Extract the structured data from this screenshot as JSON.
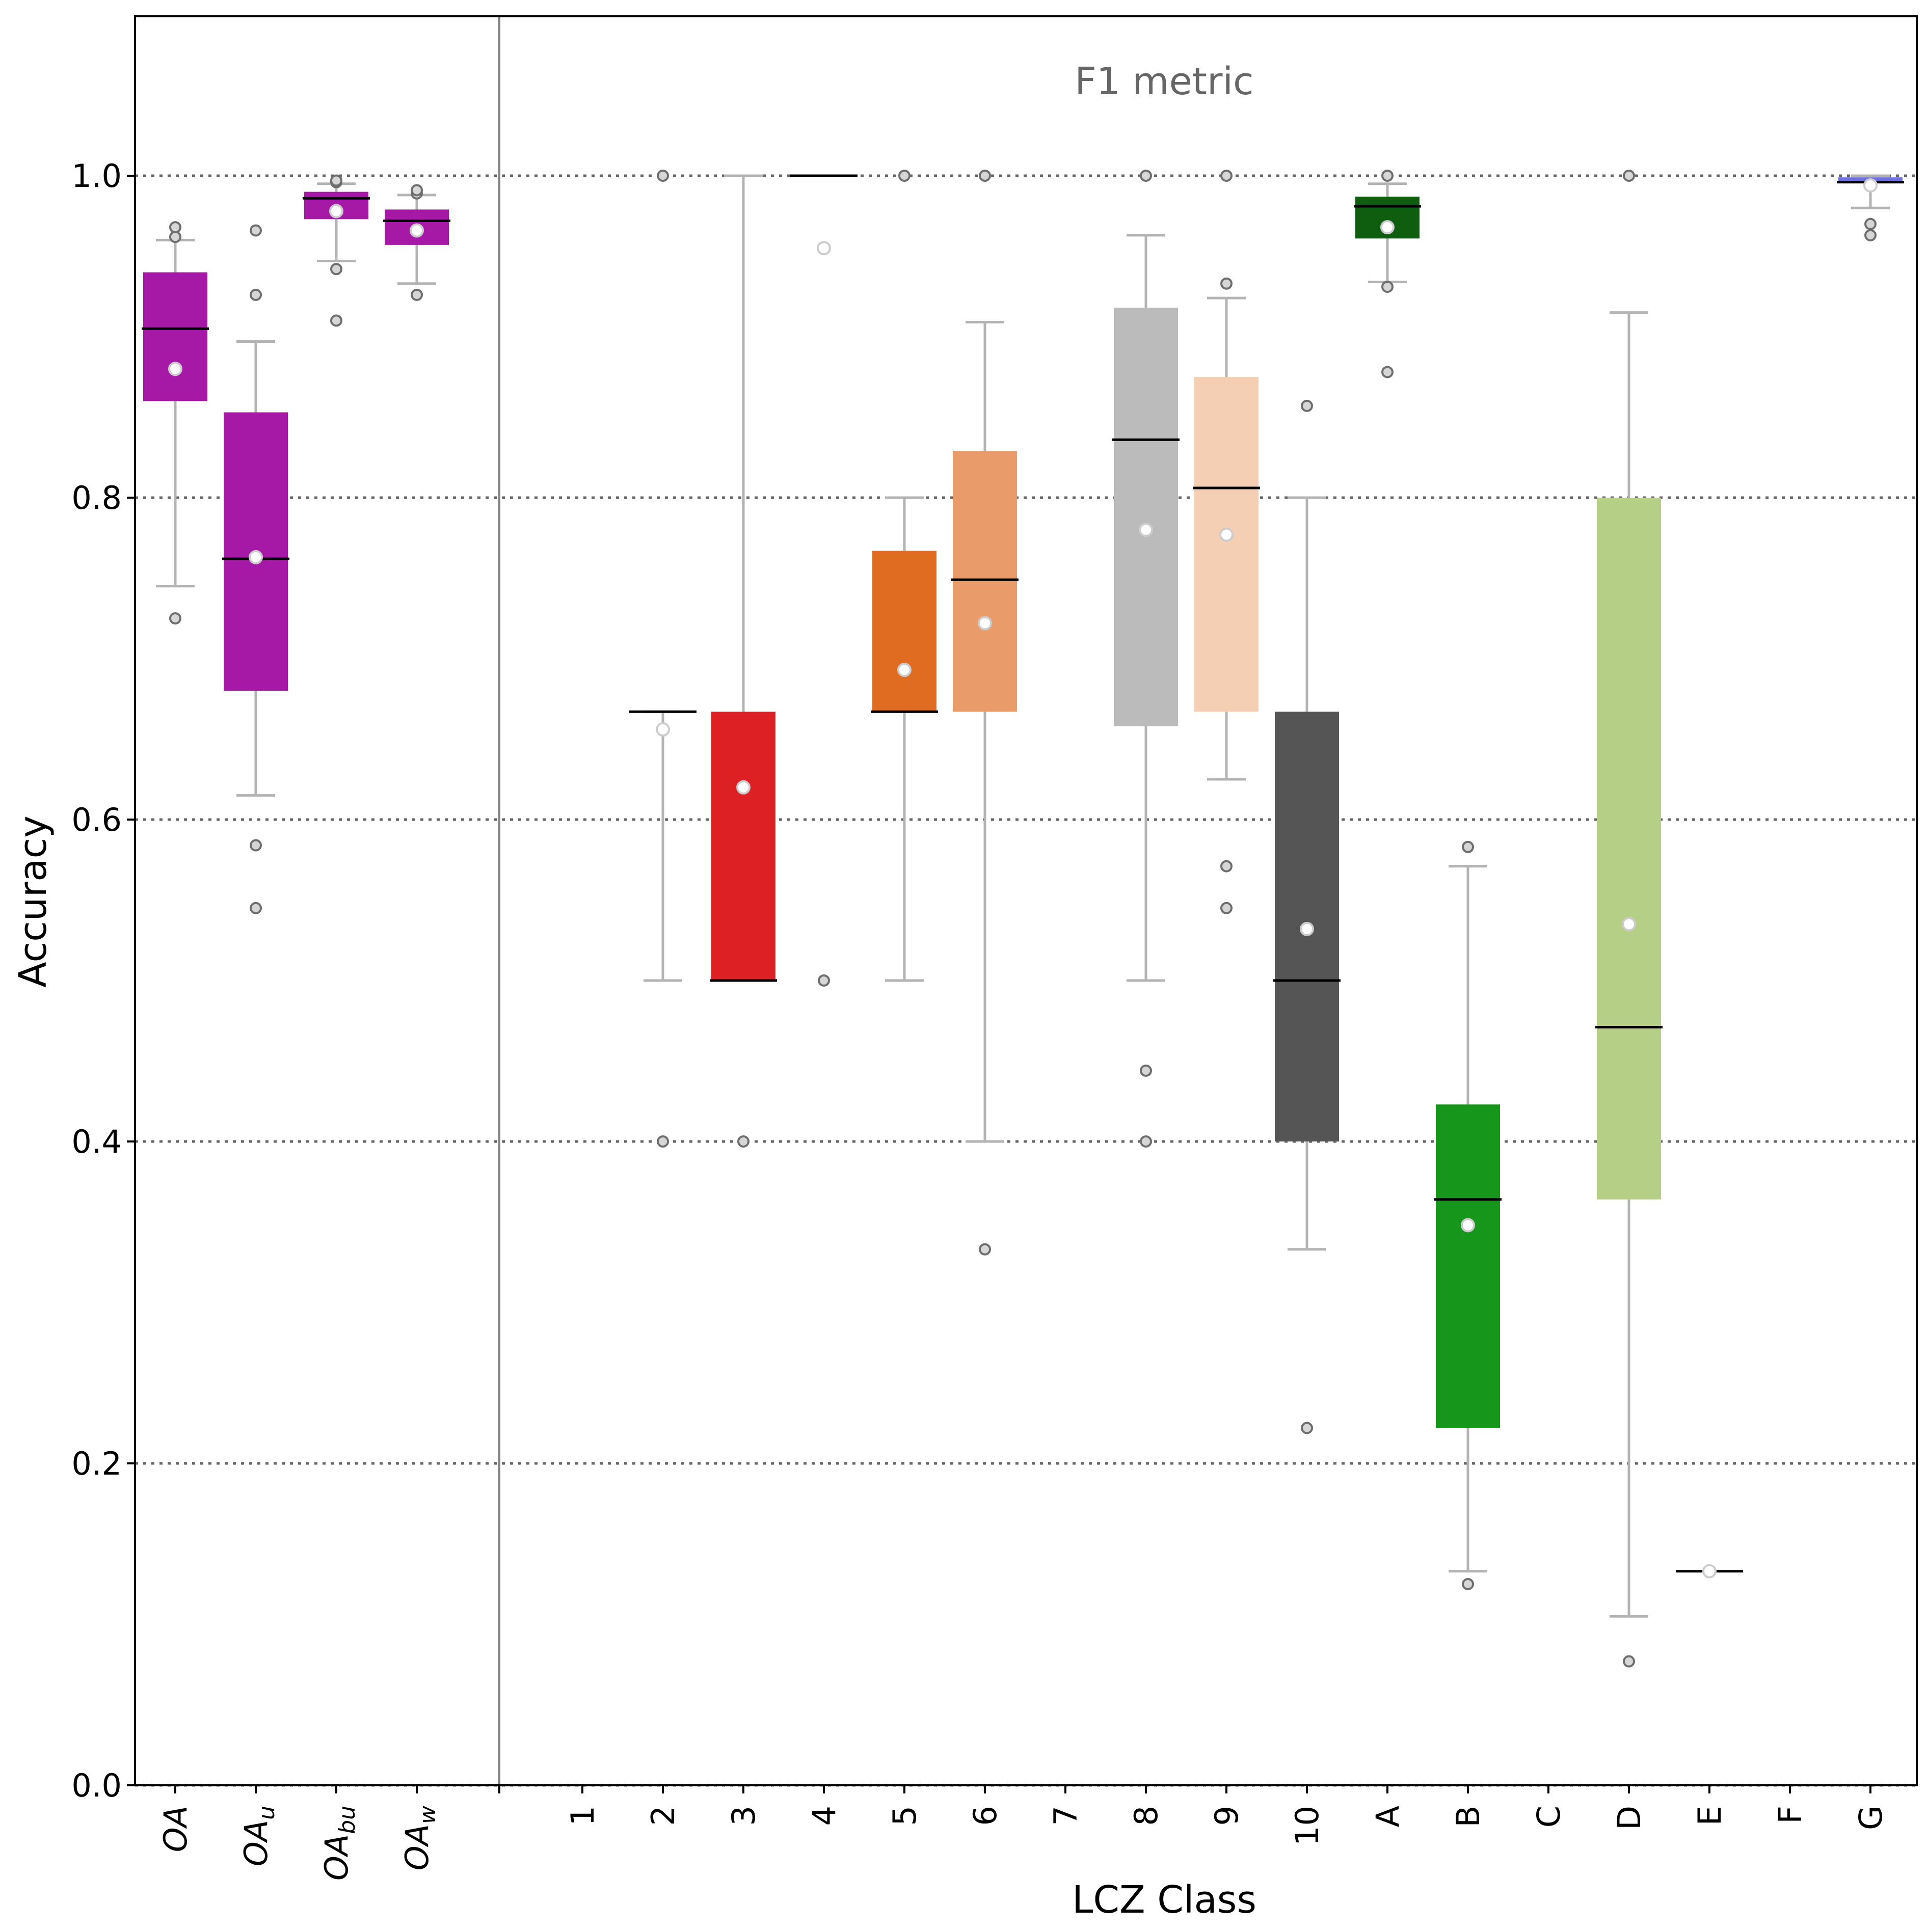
{
  "chart_data": {
    "type": "box",
    "title": "F1 metric",
    "xlabel": "LCZ Class",
    "ylabel": "Accuracy",
    "ylim": [
      0.0,
      1.1
    ],
    "yticks": [
      0.0,
      0.2,
      0.4,
      0.6,
      0.8,
      1.0
    ],
    "ytick_labels": [
      "0.0",
      "0.2",
      "0.4",
      "0.6",
      "0.8",
      "1.0"
    ],
    "grid": "horizontal dotted at y ticks",
    "separator_after_category_index": 3,
    "legend": "none",
    "categories": [
      {
        "label": "OA",
        "sub": "",
        "color": "#a619a6",
        "q1": 0.86,
        "median": 0.905,
        "q3": 0.94,
        "whisker_low": 0.745,
        "whisker_high": 0.96,
        "mean": 0.88,
        "outliers": [
          0.725,
          0.962,
          0.968
        ]
      },
      {
        "label": "OA",
        "sub": "u",
        "color": "#a619a6",
        "q1": 0.68,
        "median": 0.762,
        "q3": 0.853,
        "whisker_low": 0.615,
        "whisker_high": 0.897,
        "mean": 0.763,
        "outliers": [
          0.545,
          0.584,
          0.926,
          0.966
        ]
      },
      {
        "label": "OA",
        "sub": "bu",
        "color": "#a619a6",
        "q1": 0.973,
        "median": 0.986,
        "q3": 0.99,
        "whisker_low": 0.947,
        "whisker_high": 0.995,
        "mean": 0.978,
        "outliers": [
          0.91,
          0.942,
          0.996,
          0.997
        ]
      },
      {
        "label": "OA",
        "sub": "w",
        "color": "#a619a6",
        "q1": 0.957,
        "median": 0.972,
        "q3": 0.979,
        "whisker_low": 0.933,
        "whisker_high": 0.988,
        "mean": 0.966,
        "outliers": [
          0.926,
          0.989,
          0.991
        ]
      },
      {
        "label": "1",
        "sub": "",
        "color": null,
        "q1": null,
        "median": null,
        "q3": null,
        "whisker_low": null,
        "whisker_high": null,
        "mean": null,
        "outliers": []
      },
      {
        "label": "2",
        "sub": "",
        "color": "#ff0000",
        "q1": 0.667,
        "median": 0.667,
        "q3": 0.667,
        "whisker_low": 0.5,
        "whisker_high": 0.667,
        "mean": 0.656,
        "outliers": [
          0.4,
          1.0
        ]
      },
      {
        "label": "3",
        "sub": "",
        "color": "#dd2024",
        "q1": 0.5,
        "median": 0.5,
        "q3": 0.667,
        "whisker_low": 0.5,
        "whisker_high": 1.0,
        "mean": 0.62,
        "outliers": [
          0.4
        ]
      },
      {
        "label": "4",
        "sub": "",
        "color": "#cc3322",
        "q1": 1.0,
        "median": 1.0,
        "q3": 1.0,
        "whisker_low": 1.0,
        "whisker_high": 1.0,
        "mean": 0.955,
        "outliers": [
          0.5
        ]
      },
      {
        "label": "5",
        "sub": "",
        "color": "#e06c22",
        "q1": 0.667,
        "median": 0.667,
        "q3": 0.767,
        "whisker_low": 0.5,
        "whisker_high": 0.8,
        "mean": 0.693,
        "outliers": [
          1.0
        ]
      },
      {
        "label": "6",
        "sub": "",
        "color": "#e99b6a",
        "q1": 0.667,
        "median": 0.749,
        "q3": 0.829,
        "whisker_low": 0.4,
        "whisker_high": 0.909,
        "mean": 0.722,
        "outliers": [
          0.333,
          1.0
        ]
      },
      {
        "label": "7",
        "sub": "",
        "color": null,
        "q1": null,
        "median": null,
        "q3": null,
        "whisker_low": null,
        "whisker_high": null,
        "mean": null,
        "outliers": []
      },
      {
        "label": "8",
        "sub": "",
        "color": "#bbbbbb",
        "q1": 0.658,
        "median": 0.836,
        "q3": 0.918,
        "whisker_low": 0.5,
        "whisker_high": 0.963,
        "mean": 0.78,
        "outliers": [
          0.4,
          0.444,
          1.0
        ]
      },
      {
        "label": "9",
        "sub": "",
        "color": "#f4cfb3",
        "q1": 0.667,
        "median": 0.806,
        "q3": 0.875,
        "whisker_low": 0.625,
        "whisker_high": 0.924,
        "mean": 0.777,
        "outliers": [
          0.545,
          0.571,
          0.933,
          1.0
        ]
      },
      {
        "label": "10",
        "sub": "",
        "color": "#555555",
        "q1": 0.4,
        "median": 0.5,
        "q3": 0.667,
        "whisker_low": 0.333,
        "whisker_high": 0.8,
        "mean": 0.532,
        "outliers": [
          0.222,
          0.857
        ]
      },
      {
        "label": "A",
        "sub": "",
        "color": "#0f5e0f",
        "q1": 0.961,
        "median": 0.981,
        "q3": 0.987,
        "whisker_low": 0.934,
        "whisker_high": 0.995,
        "mean": 0.968,
        "outliers": [
          0.878,
          0.931,
          1.0
        ]
      },
      {
        "label": "B",
        "sub": "",
        "color": "#16961a",
        "q1": 0.222,
        "median": 0.364,
        "q3": 0.423,
        "whisker_low": 0.133,
        "whisker_high": 0.571,
        "mean": 0.348,
        "outliers": [
          0.125,
          0.583
        ]
      },
      {
        "label": "C",
        "sub": "",
        "color": null,
        "q1": null,
        "median": null,
        "q3": null,
        "whisker_low": null,
        "whisker_high": null,
        "mean": null,
        "outliers": []
      },
      {
        "label": "D",
        "sub": "",
        "color": "#b5d086",
        "q1": 0.364,
        "median": 0.471,
        "q3": 0.8,
        "whisker_low": 0.105,
        "whisker_high": 0.915,
        "mean": 0.535,
        "outliers": [
          0.077,
          1.0
        ]
      },
      {
        "label": "E",
        "sub": "",
        "color": "#dddddd",
        "q1": 0.133,
        "median": 0.133,
        "q3": 0.133,
        "whisker_low": 0.133,
        "whisker_high": 0.133,
        "mean": 0.133,
        "outliers": []
      },
      {
        "label": "F",
        "sub": "",
        "color": null,
        "q1": null,
        "median": null,
        "q3": null,
        "whisker_low": null,
        "whisker_high": null,
        "mean": null,
        "outliers": []
      },
      {
        "label": "G",
        "sub": "",
        "color": "#6f6fe0",
        "q1": 0.9955,
        "median": 0.996,
        "q3": 0.999,
        "whisker_low": 0.98,
        "whisker_high": 1.0,
        "mean": 0.994,
        "outliers": [
          0.963,
          0.97
        ]
      }
    ]
  }
}
